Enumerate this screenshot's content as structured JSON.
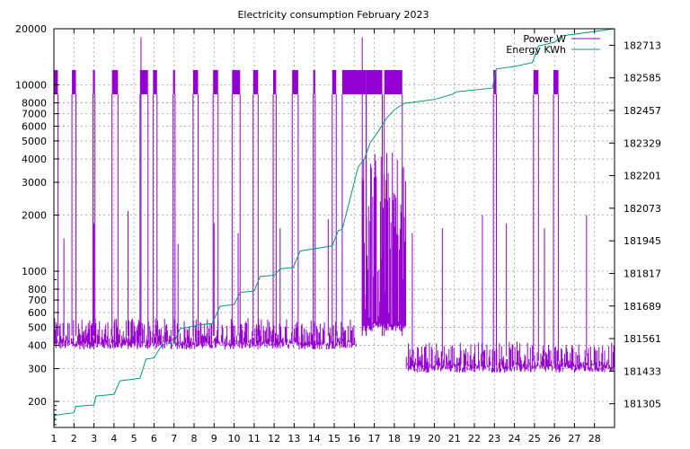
{
  "chart_data": {
    "type": "line",
    "title": "Electricity consumption February 2023",
    "xlabel": "",
    "ylabel": "",
    "y2label": "",
    "grid": true,
    "legend_position": "top-right",
    "x_range": [
      1,
      29
    ],
    "x_ticks": [
      "1",
      "2",
      "3",
      "4",
      "5",
      "6",
      "7",
      "8",
      "9",
      "10",
      "11",
      "12",
      "13",
      "14",
      "15",
      "16",
      "17",
      "18",
      "19",
      "20",
      "21",
      "22",
      "23",
      "24",
      "25",
      "26",
      "27",
      "28"
    ],
    "y_scale": "log",
    "y_range": [
      145,
      20000
    ],
    "y_ticks": [
      200,
      300,
      400,
      500,
      600,
      700,
      800,
      1000,
      2000,
      3000,
      4000,
      5000,
      6000,
      7000,
      8000,
      10000,
      20000
    ],
    "y2_range": [
      181212,
      182778
    ],
    "y2_ticks": [
      181305,
      181433,
      181561,
      181689,
      181817,
      181945,
      182073,
      182201,
      182329,
      182457,
      182585,
      182713
    ],
    "series": [
      {
        "name": "Power W",
        "color": "#9400d3",
        "axis": "left",
        "baseline_segments": [
          {
            "x_start": 1.0,
            "x_end": 16.1,
            "low": 400,
            "high": 560
          },
          {
            "x_start": 16.4,
            "x_end": 18.6,
            "low": 500,
            "high": 4500
          },
          {
            "x_start": 18.6,
            "x_end": 29.0,
            "low": 300,
            "high": 420
          }
        ],
        "high_blocks": [
          [
            1.0,
            1.2
          ],
          [
            1.9,
            2.1
          ],
          [
            2.95,
            3.05
          ],
          [
            3.9,
            4.2
          ],
          [
            5.3,
            5.7
          ],
          [
            5.95,
            6.15
          ],
          [
            6.95,
            7.05
          ],
          [
            7.95,
            8.2
          ],
          [
            8.95,
            9.2
          ],
          [
            9.9,
            10.3
          ],
          [
            10.95,
            11.2
          ],
          [
            11.95,
            12.1
          ],
          [
            12.9,
            13.2
          ],
          [
            13.95,
            14.05
          ],
          [
            14.9,
            15.1
          ],
          [
            15.4,
            16.6
          ],
          [
            16.6,
            17.4
          ],
          [
            17.5,
            18.4
          ],
          [
            22.95,
            23.1
          ],
          [
            24.95,
            25.2
          ],
          [
            25.95,
            26.2
          ]
        ],
        "high_block_range": [
          8900,
          12000
        ],
        "spikes": [
          {
            "x": 1.5,
            "y": 1500
          },
          {
            "x": 3.0,
            "y": 1800
          },
          {
            "x": 4.7,
            "y": 2100
          },
          {
            "x": 5.35,
            "y": 18000
          },
          {
            "x": 7.2,
            "y": 1400
          },
          {
            "x": 9.0,
            "y": 1800
          },
          {
            "x": 10.2,
            "y": 1600
          },
          {
            "x": 12.3,
            "y": 1700
          },
          {
            "x": 14.7,
            "y": 1900
          },
          {
            "x": 16.4,
            "y": 18000
          },
          {
            "x": 18.9,
            "y": 1600
          },
          {
            "x": 20.4,
            "y": 1700
          },
          {
            "x": 22.4,
            "y": 2000
          },
          {
            "x": 23.6,
            "y": 1800
          },
          {
            "x": 25.5,
            "y": 1700
          },
          {
            "x": 27.6,
            "y": 2000
          }
        ]
      },
      {
        "name": "Energy KWh",
        "color": "#009e73",
        "axis": "right",
        "points": [
          [
            1.0,
            181212
          ],
          [
            1.05,
            181260
          ],
          [
            2.0,
            181270
          ],
          [
            2.1,
            181295
          ],
          [
            3.0,
            181300
          ],
          [
            3.1,
            181335
          ],
          [
            4.0,
            181342
          ],
          [
            4.3,
            181395
          ],
          [
            5.3,
            181405
          ],
          [
            5.6,
            181480
          ],
          [
            6.0,
            181485
          ],
          [
            6.4,
            181537
          ],
          [
            7.0,
            181545
          ],
          [
            7.3,
            181600
          ],
          [
            8.0,
            181610
          ],
          [
            8.2,
            181615
          ],
          [
            8.9,
            181620
          ],
          [
            9.3,
            181688
          ],
          [
            10.0,
            181695
          ],
          [
            10.3,
            181742
          ],
          [
            11.0,
            181748
          ],
          [
            11.3,
            181805
          ],
          [
            12.0,
            181810
          ],
          [
            12.3,
            181835
          ],
          [
            12.95,
            181840
          ],
          [
            13.3,
            181905
          ],
          [
            14.9,
            181925
          ],
          [
            15.2,
            181985
          ],
          [
            15.4,
            181990
          ],
          [
            16.2,
            182235
          ],
          [
            16.5,
            182265
          ],
          [
            16.8,
            182330
          ],
          [
            17.2,
            182375
          ],
          [
            17.6,
            182425
          ],
          [
            18.0,
            182460
          ],
          [
            18.5,
            182485
          ],
          [
            20.0,
            182500
          ],
          [
            20.9,
            182520
          ],
          [
            21.1,
            182530
          ],
          [
            22.9,
            182545
          ],
          [
            23.1,
            182620
          ],
          [
            24.0,
            182630
          ],
          [
            24.9,
            182645
          ],
          [
            25.2,
            182710
          ],
          [
            26.0,
            182725
          ],
          [
            26.4,
            182750
          ],
          [
            29.0,
            182778
          ]
        ]
      }
    ]
  }
}
